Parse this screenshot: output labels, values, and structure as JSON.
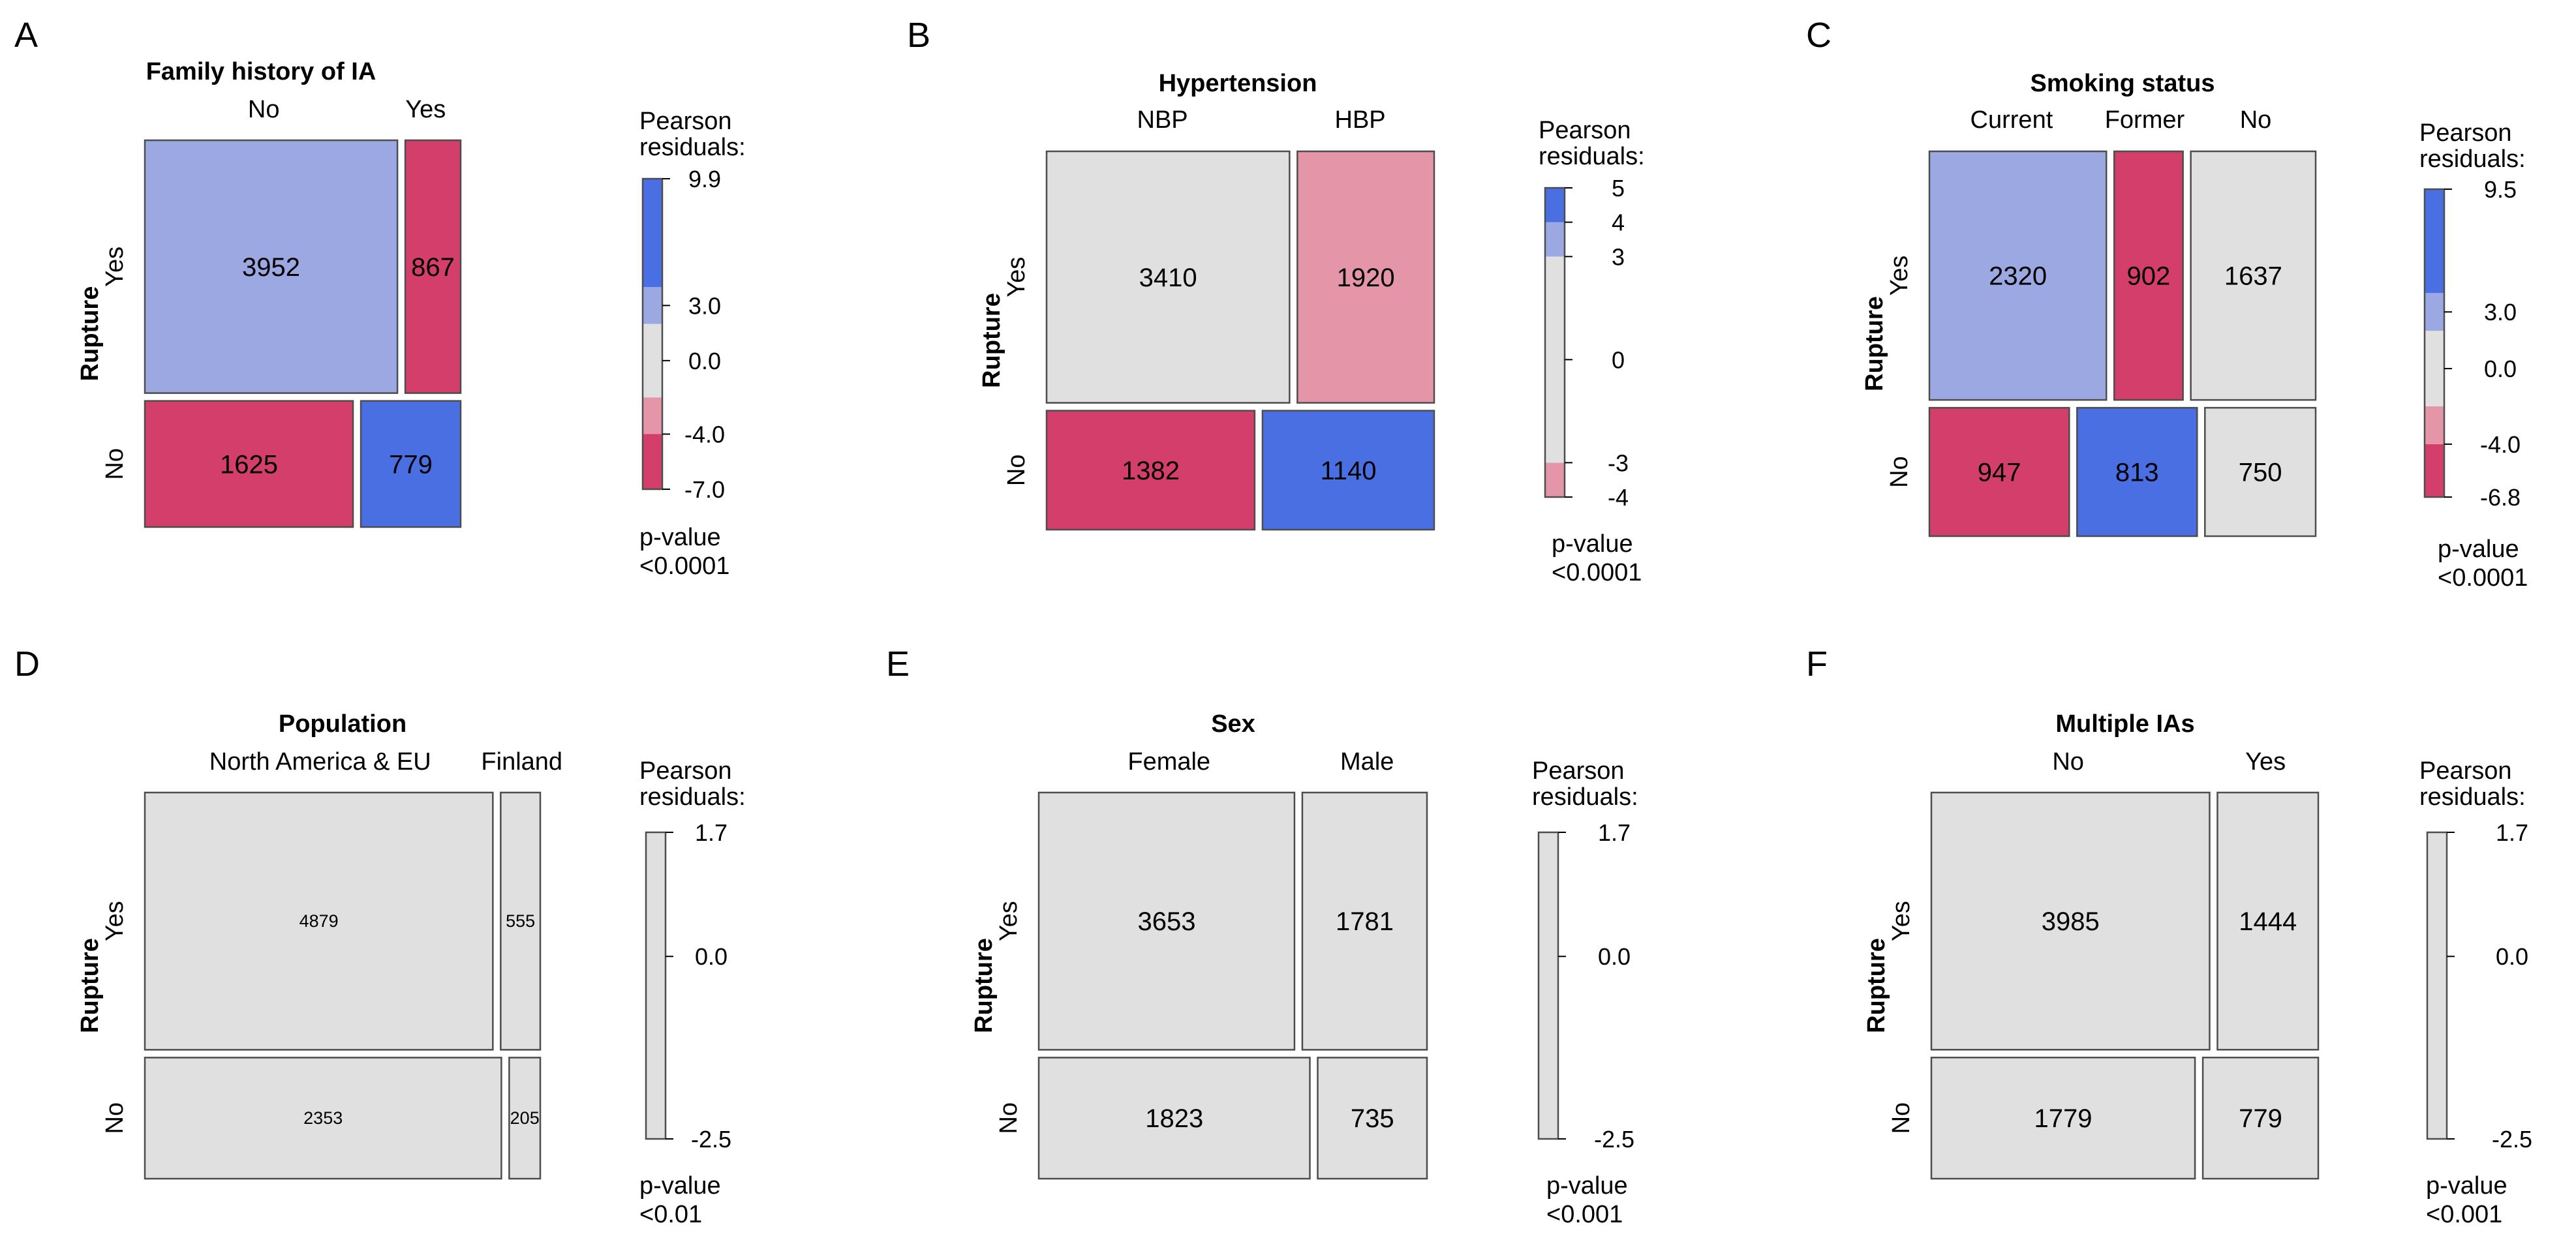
{
  "row_axis_label": "Rupture",
  "row_levels": [
    "Yes",
    "No"
  ],
  "legend_title": [
    "Pearson",
    "residuals:"
  ],
  "p_value_label": "p-value",
  "colors": {
    "strong_blue": "#4a6fe3",
    "light_blue": "#9ca8e2",
    "neutral": "#e0e0e0",
    "light_red": "#e496a8",
    "strong_red": "#d33f6a",
    "border": "#4d4d4d"
  },
  "chart_data": [
    {
      "type": "mosaic",
      "panel_letter": "A",
      "title": "Family history of IA",
      "columns": [
        "No",
        "Yes"
      ],
      "counts": [
        [
          3952,
          867
        ],
        [
          1625,
          779
        ]
      ],
      "residual_class": [
        [
          "light_blue",
          "strong_red"
        ],
        [
          "strong_red",
          "strong_blue"
        ]
      ],
      "legend": {
        "range": [
          -7.0,
          9.9
        ],
        "ticks": [
          "9.9",
          "3.0",
          "0.0",
          "-4.0",
          "-7.0"
        ],
        "tick_values": [
          9.9,
          3.0,
          0.0,
          -4.0,
          -7.0
        ],
        "bands": [
          [
            -7.0,
            -4.0,
            "strong_red"
          ],
          [
            -4.0,
            -2.0,
            "light_red"
          ],
          [
            -2.0,
            2.0,
            "neutral"
          ],
          [
            2.0,
            4.0,
            "light_blue"
          ],
          [
            4.0,
            9.9,
            "strong_blue"
          ]
        ]
      },
      "p_value": "<0.0001"
    },
    {
      "type": "mosaic",
      "panel_letter": "B",
      "title": "Hypertension",
      "columns": [
        "NBP",
        "HBP"
      ],
      "counts": [
        [
          3410,
          1920
        ],
        [
          1382,
          1140
        ]
      ],
      "residual_class": [
        [
          "neutral",
          "light_red"
        ],
        [
          "strong_red",
          "strong_blue"
        ]
      ],
      "legend": {
        "range": [
          -4,
          5
        ],
        "ticks": [
          "5",
          "4",
          "3",
          "0",
          "-3",
          "-4"
        ],
        "tick_values": [
          5,
          4,
          3,
          0,
          -3,
          -4
        ],
        "bands": [
          [
            -4,
            -3,
            "light_red"
          ],
          [
            -3,
            3,
            "neutral"
          ],
          [
            3,
            4,
            "light_blue"
          ],
          [
            4,
            5,
            "strong_blue"
          ]
        ]
      },
      "p_value": "<0.0001"
    },
    {
      "type": "mosaic",
      "panel_letter": "C",
      "title": "Smoking status",
      "columns": [
        "Current",
        "Former",
        "No"
      ],
      "counts": [
        [
          2320,
          902,
          1637
        ],
        [
          947,
          813,
          750
        ]
      ],
      "residual_class": [
        [
          "light_blue",
          "strong_red",
          "neutral"
        ],
        [
          "strong_red",
          "strong_blue",
          "neutral"
        ]
      ],
      "legend": {
        "range": [
          -6.8,
          9.5
        ],
        "ticks": [
          "9.5",
          "3.0",
          "0.0",
          "-4.0",
          "-6.8"
        ],
        "tick_values": [
          9.5,
          3.0,
          0.0,
          -4.0,
          -6.8
        ],
        "bands": [
          [
            -6.8,
            -4.0,
            "strong_red"
          ],
          [
            -4.0,
            -2.0,
            "light_red"
          ],
          [
            -2.0,
            2.0,
            "neutral"
          ],
          [
            2.0,
            4.0,
            "light_blue"
          ],
          [
            4.0,
            9.5,
            "strong_blue"
          ]
        ]
      },
      "p_value": "<0.0001"
    },
    {
      "type": "mosaic",
      "panel_letter": "D",
      "title": "Population",
      "columns": [
        "North America & EU",
        "Finland"
      ],
      "counts": [
        [
          4879,
          555
        ],
        [
          2353,
          205
        ]
      ],
      "residual_class": [
        [
          "neutral",
          "neutral"
        ],
        [
          "neutral",
          "neutral"
        ]
      ],
      "legend": {
        "range": [
          -2.5,
          1.7
        ],
        "ticks": [
          "1.7",
          "0.0",
          "-2.5"
        ],
        "tick_values": [
          1.7,
          0.0,
          -2.5
        ],
        "bands": [
          [
            -2.5,
            1.7,
            "neutral"
          ]
        ]
      },
      "p_value": "<0.01",
      "small_labels": true
    },
    {
      "type": "mosaic",
      "panel_letter": "E",
      "title": "Sex",
      "columns": [
        "Female",
        "Male"
      ],
      "counts": [
        [
          3653,
          1781
        ],
        [
          1823,
          735
        ]
      ],
      "residual_class": [
        [
          "neutral",
          "neutral"
        ],
        [
          "neutral",
          "neutral"
        ]
      ],
      "legend": {
        "range": [
          -2.5,
          1.7
        ],
        "ticks": [
          "1.7",
          "0.0",
          "-2.5"
        ],
        "tick_values": [
          1.7,
          0.0,
          -2.5
        ],
        "bands": [
          [
            -2.5,
            1.7,
            "neutral"
          ]
        ]
      },
      "p_value": "<0.001"
    },
    {
      "type": "mosaic",
      "panel_letter": "F",
      "title": "Multiple IAs",
      "columns": [
        "No",
        "Yes"
      ],
      "counts": [
        [
          3985,
          1444
        ],
        [
          1779,
          779
        ]
      ],
      "residual_class": [
        [
          "neutral",
          "neutral"
        ],
        [
          "neutral",
          "neutral"
        ]
      ],
      "legend": {
        "range": [
          -2.5,
          1.7
        ],
        "ticks": [
          "1.7",
          "0.0",
          "-2.5"
        ],
        "tick_values": [
          1.7,
          0.0,
          -2.5
        ],
        "bands": [
          [
            -2.5,
            1.7,
            "neutral"
          ]
        ]
      },
      "p_value": "<0.001"
    }
  ]
}
